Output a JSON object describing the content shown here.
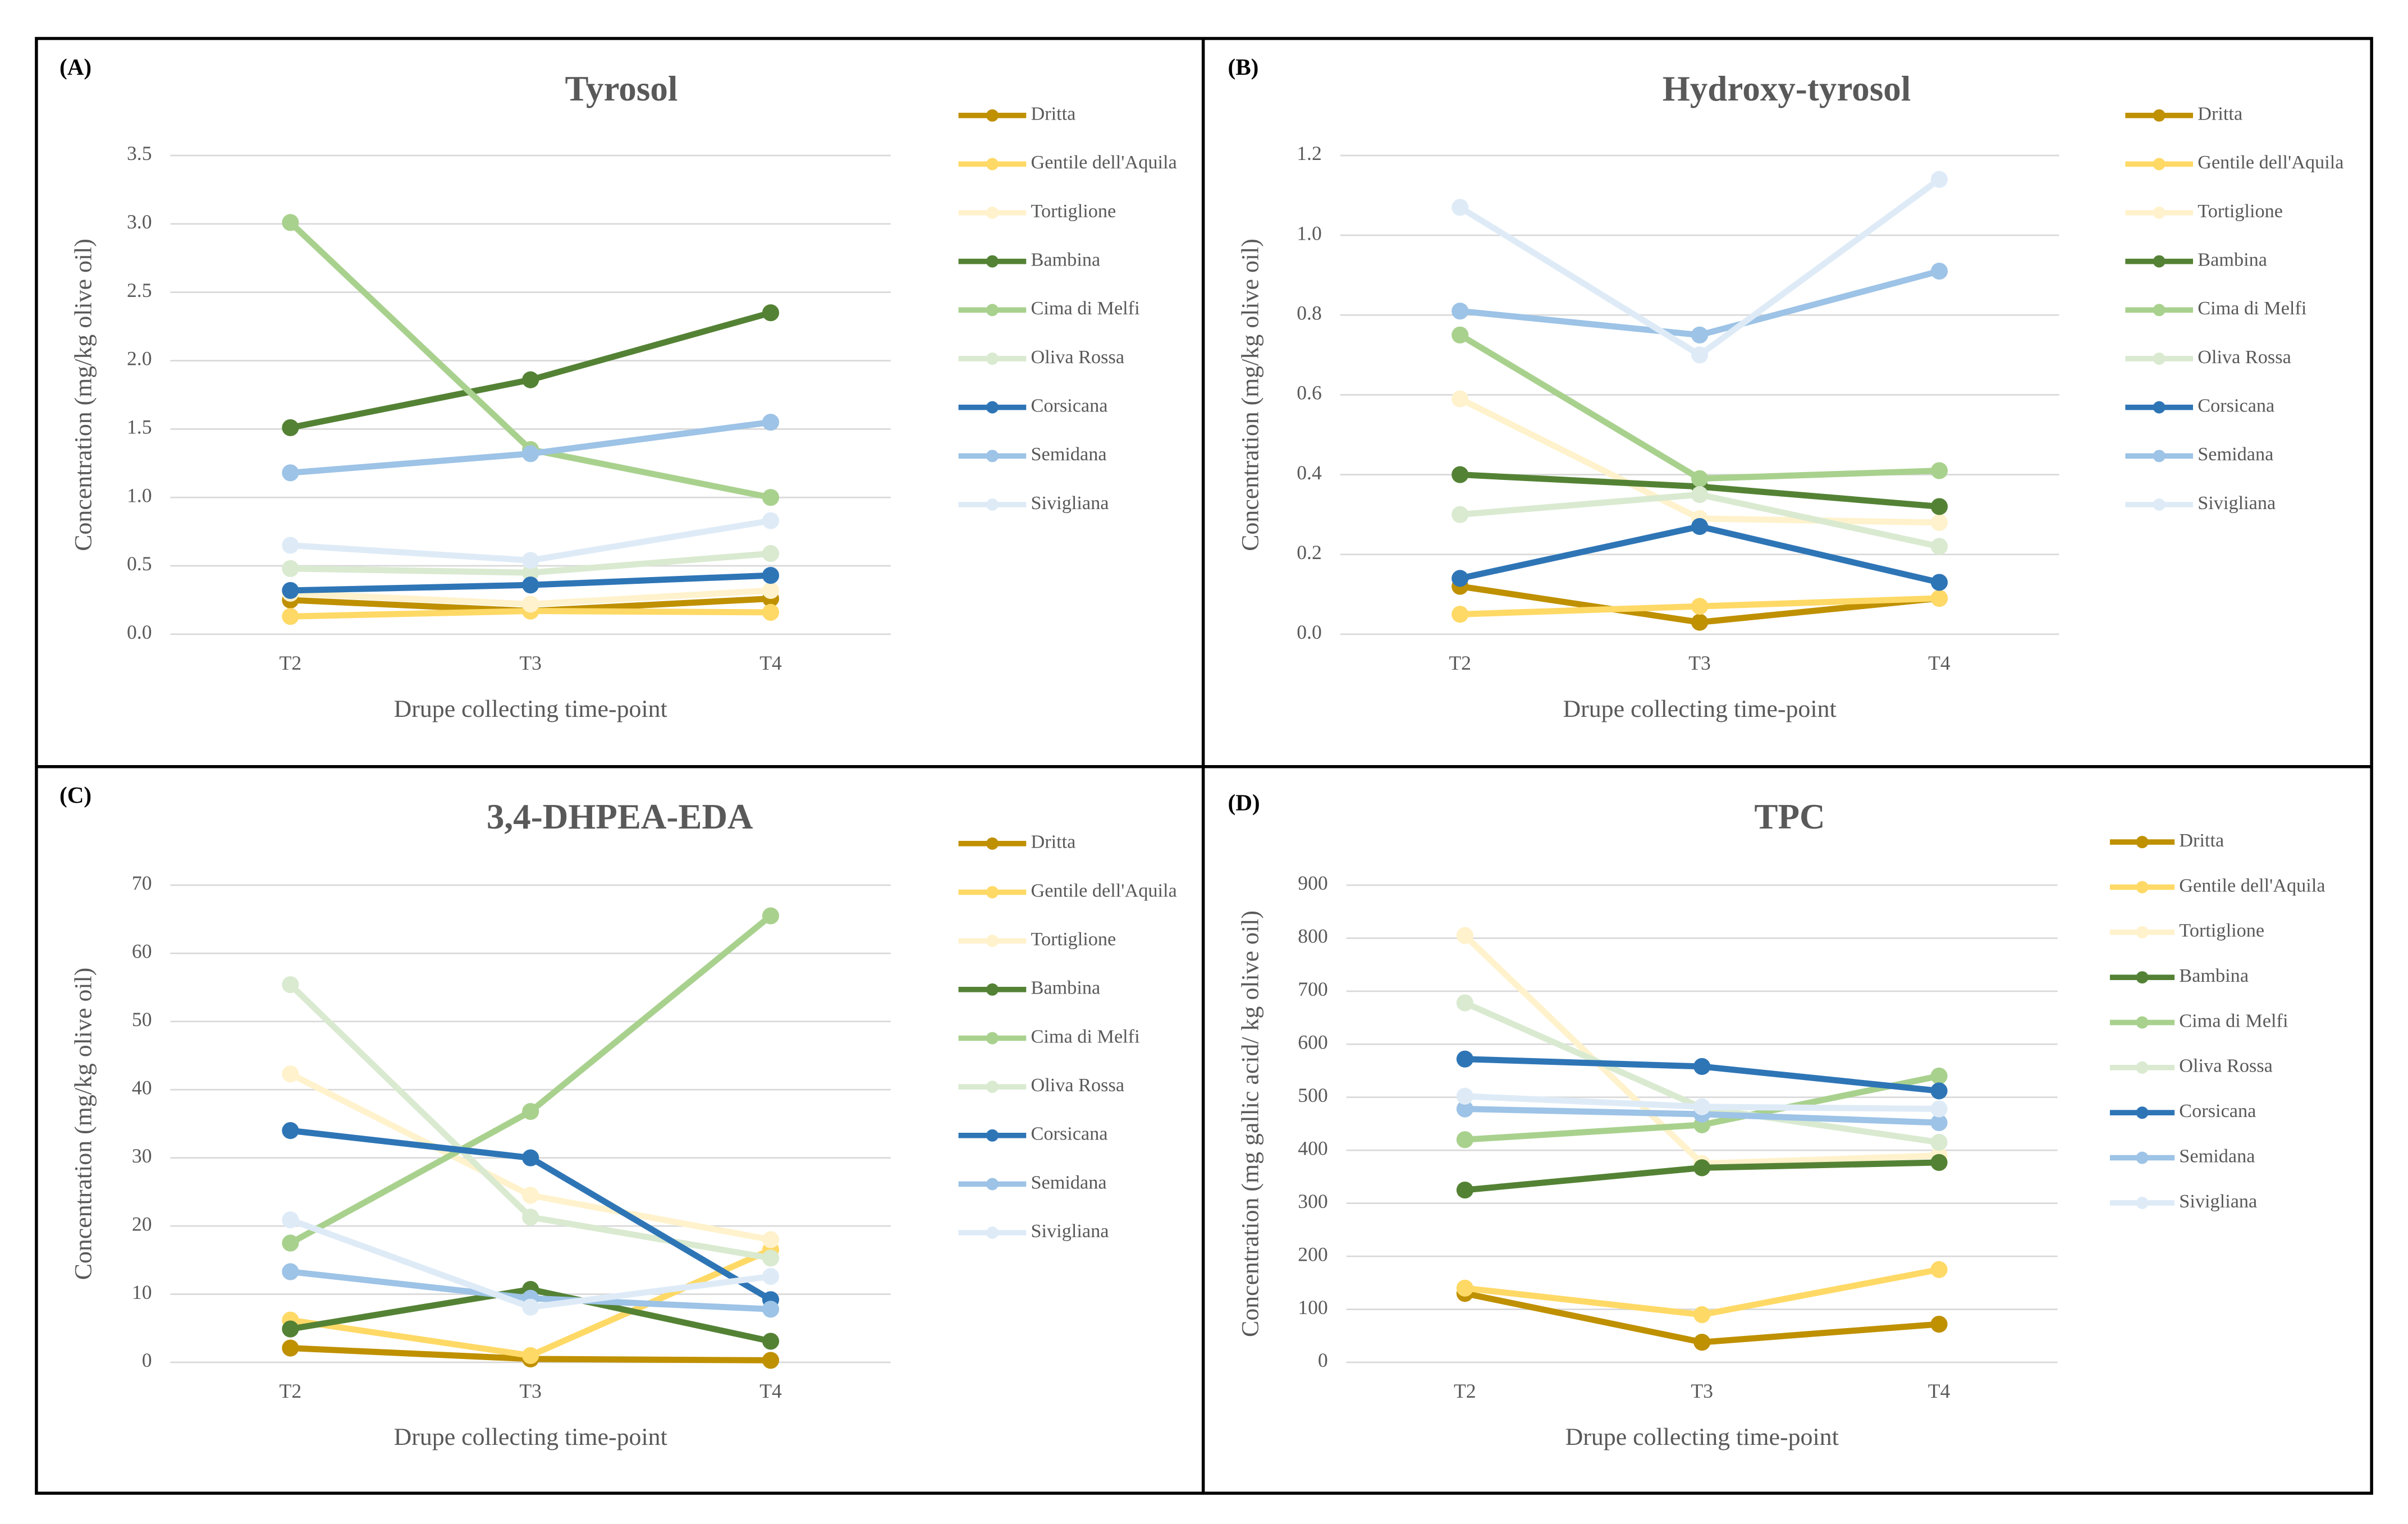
{
  "chart_data": [
    {
      "type": "line",
      "panel": "(A)",
      "title": "Tyrosol",
      "x_label": "Drupe collecting time-point",
      "y_label": "Concentration (mg/kg olive oil)",
      "categories": [
        "T2",
        "T3",
        "T4"
      ],
      "ylim": [
        0,
        3.5
      ],
      "yticks": [
        {
          "value": 0,
          "label": "0.0"
        },
        0.5,
        {
          "value": 1,
          "label": "1.0"
        },
        1.5,
        {
          "value": 2,
          "label": "2.0"
        },
        2.5,
        {
          "value": 3,
          "label": "3.0"
        },
        3.5
      ],
      "grid": true,
      "series": [
        {
          "name": "Dritta",
          "color": "#bf9000",
          "values": [
            0.25,
            0.17,
            0.26
          ]
        },
        {
          "name": "Gentile dell'Aquila",
          "color": "#ffd966",
          "values": [
            0.13,
            0.17,
            0.16
          ]
        },
        {
          "name": "Tortiglione",
          "color": "#fff2cc",
          "values": [
            0.3,
            0.22,
            0.32
          ]
        },
        {
          "name": "Bambina",
          "color": "#548235",
          "values": [
            1.51,
            1.86,
            2.35
          ]
        },
        {
          "name": "Cima di Melfi",
          "color": "#a9d18e",
          "values": [
            3.01,
            1.35,
            1.0
          ]
        },
        {
          "name": "Oliva Rossa",
          "color": "#d9ead0",
          "values": [
            0.48,
            0.45,
            0.59
          ]
        },
        {
          "name": "Corsicana",
          "color": "#2e75b6",
          "values": [
            0.32,
            0.36,
            0.43
          ]
        },
        {
          "name": "Semidana",
          "color": "#9dc3e6",
          "values": [
            1.18,
            1.32,
            1.55
          ]
        },
        {
          "name": "Sivigliana",
          "color": "#deebf7",
          "values": [
            0.65,
            0.54,
            0.83
          ]
        }
      ]
    },
    {
      "type": "line",
      "panel": "(B)",
      "title": "Hydroxy-tyrosol",
      "x_label": "Drupe collecting time-point",
      "y_label": "Concentration (mg/kg olive oil)",
      "categories": [
        "T2",
        "T3",
        "T4"
      ],
      "ylim": [
        0,
        1.2
      ],
      "yticks": [
        {
          "value": 0,
          "label": "0.0"
        },
        0.2,
        0.4,
        0.6,
        0.8,
        {
          "value": 1,
          "label": "1.0"
        },
        1.2
      ],
      "grid": true,
      "series": [
        {
          "name": "Dritta",
          "color": "#bf9000",
          "values": [
            0.12,
            0.03,
            0.09
          ]
        },
        {
          "name": "Gentile dell'Aquila",
          "color": "#ffd966",
          "values": [
            0.05,
            0.07,
            0.09
          ]
        },
        {
          "name": "Tortiglione",
          "color": "#fff2cc",
          "values": [
            0.59,
            0.29,
            0.28
          ]
        },
        {
          "name": "Bambina",
          "color": "#548235",
          "values": [
            0.4,
            0.37,
            0.32
          ]
        },
        {
          "name": "Cima di Melfi",
          "color": "#a9d18e",
          "values": [
            0.75,
            0.39,
            0.41
          ]
        },
        {
          "name": "Oliva Rossa",
          "color": "#d9ead0",
          "values": [
            0.3,
            0.35,
            0.22
          ]
        },
        {
          "name": "Corsicana",
          "color": "#2e75b6",
          "values": [
            0.14,
            0.27,
            0.13
          ]
        },
        {
          "name": "Semidana",
          "color": "#9dc3e6",
          "values": [
            0.81,
            0.75,
            0.91
          ]
        },
        {
          "name": "Sivigliana",
          "color": "#deebf7",
          "values": [
            1.07,
            0.7,
            1.14
          ]
        }
      ]
    },
    {
      "type": "line",
      "panel": "(C)",
      "title": "3,4-DHPEA-EDA",
      "x_label": "Drupe collecting time-point",
      "y_label": "Concentration (mg/kg olive oil)",
      "categories": [
        "T2",
        "T3",
        "T4"
      ],
      "ylim": [
        0,
        70
      ],
      "yticks": [
        0,
        10,
        20,
        30,
        40,
        50,
        60,
        70
      ],
      "grid": true,
      "series": [
        {
          "name": "Dritta",
          "color": "#bf9000",
          "values": [
            2.1,
            0.5,
            0.3
          ]
        },
        {
          "name": "Gentile dell'Aquila",
          "color": "#ffd966",
          "values": [
            6.2,
            1.0,
            16.5
          ]
        },
        {
          "name": "Tortiglione",
          "color": "#fff2cc",
          "values": [
            42.3,
            24.5,
            18.0
          ]
        },
        {
          "name": "Bambina",
          "color": "#548235",
          "values": [
            4.9,
            10.7,
            3.1
          ]
        },
        {
          "name": "Cima di Melfi",
          "color": "#a9d18e",
          "values": [
            17.5,
            36.8,
            65.5
          ]
        },
        {
          "name": "Oliva Rossa",
          "color": "#d9ead0",
          "values": [
            55.4,
            21.3,
            15.3
          ]
        },
        {
          "name": "Corsicana",
          "color": "#2e75b6",
          "values": [
            34.0,
            30.0,
            9.2
          ]
        },
        {
          "name": "Semidana",
          "color": "#9dc3e6",
          "values": [
            13.3,
            9.4,
            7.8
          ]
        },
        {
          "name": "Sivigliana",
          "color": "#deebf7",
          "values": [
            20.9,
            8.1,
            12.6
          ]
        }
      ]
    },
    {
      "type": "line",
      "panel": "(D)",
      "title": "TPC",
      "x_label": "Drupe collecting time-point",
      "y_label": "Concentration (mg gallic acid/ kg olive oil)",
      "categories": [
        "T2",
        "T3",
        "T4"
      ],
      "ylim": [
        0,
        900
      ],
      "yticks": [
        0,
        100,
        200,
        300,
        400,
        500,
        600,
        700,
        800,
        900
      ],
      "grid": true,
      "series": [
        {
          "name": "Dritta",
          "color": "#bf9000",
          "values": [
            130,
            38,
            72
          ]
        },
        {
          "name": "Gentile dell'Aquila",
          "color": "#ffd966",
          "values": [
            140,
            90,
            175
          ]
        },
        {
          "name": "Tortiglione",
          "color": "#fff2cc",
          "values": [
            805,
            375,
            390
          ]
        },
        {
          "name": "Bambina",
          "color": "#548235",
          "values": [
            325,
            367,
            377
          ]
        },
        {
          "name": "Cima di Melfi",
          "color": "#a9d18e",
          "values": [
            420,
            448,
            540
          ]
        },
        {
          "name": "Oliva Rossa",
          "color": "#d9ead0",
          "values": [
            678,
            480,
            415
          ]
        },
        {
          "name": "Corsicana",
          "color": "#2e75b6",
          "values": [
            572,
            558,
            512
          ]
        },
        {
          "name": "Semidana",
          "color": "#9dc3e6",
          "values": [
            478,
            468,
            452
          ]
        },
        {
          "name": "Sivigliana",
          "color": "#deebf7",
          "values": [
            502,
            482,
            478
          ]
        }
      ]
    }
  ]
}
